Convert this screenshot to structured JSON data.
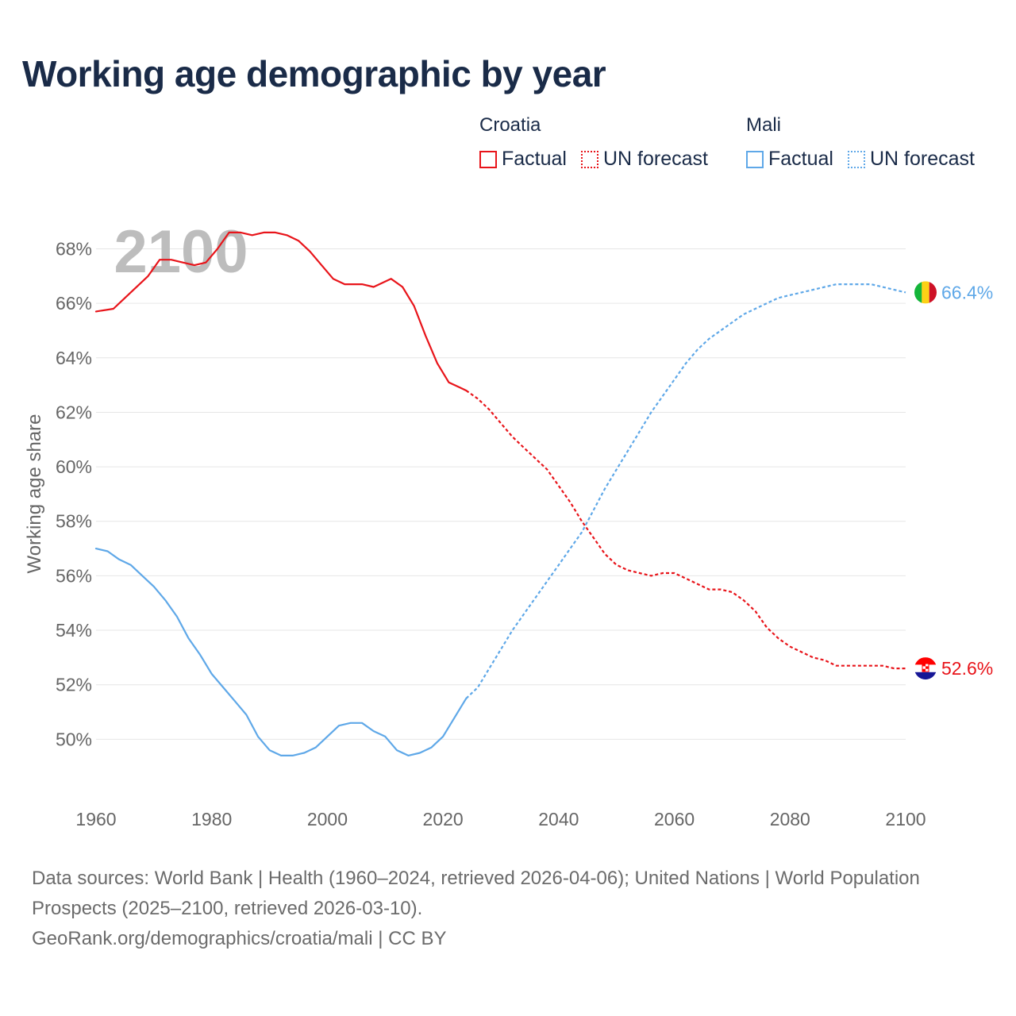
{
  "header": {
    "title": "Working age demographic by year"
  },
  "legend": {
    "groups": [
      {
        "name": "Croatia",
        "factual_label": "Factual",
        "forecast_label": "UN forecast",
        "color": "#e8141a"
      },
      {
        "name": "Mali",
        "factual_label": "Factual",
        "forecast_label": "UN forecast",
        "color": "#5fa8e8"
      }
    ]
  },
  "chart_data": {
    "type": "line",
    "title": "Working age demographic by year",
    "xlabel": "",
    "ylabel": "Working age share",
    "xlim": [
      1960,
      2100
    ],
    "ylim": [
      48,
      69.5
    ],
    "x_ticks": [
      "1960",
      "1980",
      "2000",
      "2020",
      "2040",
      "2060",
      "2080",
      "2100"
    ],
    "y_ticks": [
      "50%",
      "52%",
      "54%",
      "56%",
      "58%",
      "60%",
      "62%",
      "64%",
      "66%",
      "68%"
    ],
    "grid": true,
    "year_watermark": "2100",
    "forecast_start": 2024,
    "series": [
      {
        "name": "Croatia",
        "color": "#e8141a",
        "end_label": "52.6%",
        "flag": "croatia",
        "points": [
          [
            1960,
            65.7
          ],
          [
            1963,
            65.8
          ],
          [
            1966,
            66.4
          ],
          [
            1969,
            67.0
          ],
          [
            1971,
            67.6
          ],
          [
            1973,
            67.6
          ],
          [
            1975,
            67.5
          ],
          [
            1977,
            67.4
          ],
          [
            1979,
            67.5
          ],
          [
            1981,
            68.0
          ],
          [
            1983,
            68.6
          ],
          [
            1985,
            68.6
          ],
          [
            1987,
            68.5
          ],
          [
            1989,
            68.6
          ],
          [
            1991,
            68.6
          ],
          [
            1993,
            68.5
          ],
          [
            1995,
            68.3
          ],
          [
            1997,
            67.9
          ],
          [
            1999,
            67.4
          ],
          [
            2001,
            66.9
          ],
          [
            2003,
            66.7
          ],
          [
            2006,
            66.7
          ],
          [
            2008,
            66.6
          ],
          [
            2011,
            66.9
          ],
          [
            2013,
            66.6
          ],
          [
            2015,
            65.9
          ],
          [
            2017,
            64.8
          ],
          [
            2019,
            63.8
          ],
          [
            2021,
            63.1
          ],
          [
            2023,
            62.9
          ],
          [
            2024,
            62.8
          ],
          [
            2026,
            62.5
          ],
          [
            2028,
            62.1
          ],
          [
            2030,
            61.6
          ],
          [
            2032,
            61.1
          ],
          [
            2034,
            60.7
          ],
          [
            2036,
            60.3
          ],
          [
            2038,
            59.9
          ],
          [
            2040,
            59.3
          ],
          [
            2042,
            58.7
          ],
          [
            2044,
            58.0
          ],
          [
            2046,
            57.4
          ],
          [
            2048,
            56.8
          ],
          [
            2050,
            56.4
          ],
          [
            2052,
            56.2
          ],
          [
            2054,
            56.1
          ],
          [
            2056,
            56.0
          ],
          [
            2058,
            56.1
          ],
          [
            2060,
            56.1
          ],
          [
            2062,
            55.9
          ],
          [
            2064,
            55.7
          ],
          [
            2066,
            55.5
          ],
          [
            2068,
            55.5
          ],
          [
            2070,
            55.4
          ],
          [
            2072,
            55.1
          ],
          [
            2074,
            54.7
          ],
          [
            2076,
            54.1
          ],
          [
            2078,
            53.7
          ],
          [
            2080,
            53.4
          ],
          [
            2082,
            53.2
          ],
          [
            2084,
            53.0
          ],
          [
            2086,
            52.9
          ],
          [
            2088,
            52.7
          ],
          [
            2090,
            52.7
          ],
          [
            2092,
            52.7
          ],
          [
            2094,
            52.7
          ],
          [
            2096,
            52.7
          ],
          [
            2098,
            52.6
          ],
          [
            2100,
            52.6
          ]
        ]
      },
      {
        "name": "Mali",
        "color": "#5fa8e8",
        "end_label": "66.4%",
        "flag": "mali",
        "points": [
          [
            1960,
            57.0
          ],
          [
            1962,
            56.9
          ],
          [
            1964,
            56.6
          ],
          [
            1966,
            56.4
          ],
          [
            1968,
            56.0
          ],
          [
            1970,
            55.6
          ],
          [
            1972,
            55.1
          ],
          [
            1974,
            54.5
          ],
          [
            1976,
            53.7
          ],
          [
            1978,
            53.1
          ],
          [
            1980,
            52.4
          ],
          [
            1982,
            51.9
          ],
          [
            1984,
            51.4
          ],
          [
            1986,
            50.9
          ],
          [
            1988,
            50.1
          ],
          [
            1990,
            49.6
          ],
          [
            1992,
            49.4
          ],
          [
            1994,
            49.4
          ],
          [
            1996,
            49.5
          ],
          [
            1998,
            49.7
          ],
          [
            2000,
            50.1
          ],
          [
            2002,
            50.5
          ],
          [
            2004,
            50.6
          ],
          [
            2006,
            50.6
          ],
          [
            2008,
            50.3
          ],
          [
            2010,
            50.1
          ],
          [
            2012,
            49.6
          ],
          [
            2014,
            49.4
          ],
          [
            2016,
            49.5
          ],
          [
            2018,
            49.7
          ],
          [
            2020,
            50.1
          ],
          [
            2022,
            50.8
          ],
          [
            2024,
            51.5
          ],
          [
            2026,
            51.9
          ],
          [
            2028,
            52.6
          ],
          [
            2030,
            53.3
          ],
          [
            2032,
            54.0
          ],
          [
            2034,
            54.6
          ],
          [
            2036,
            55.2
          ],
          [
            2038,
            55.8
          ],
          [
            2040,
            56.4
          ],
          [
            2042,
            57.0
          ],
          [
            2044,
            57.6
          ],
          [
            2046,
            58.4
          ],
          [
            2048,
            59.2
          ],
          [
            2050,
            59.9
          ],
          [
            2052,
            60.6
          ],
          [
            2054,
            61.3
          ],
          [
            2056,
            62.0
          ],
          [
            2058,
            62.6
          ],
          [
            2060,
            63.2
          ],
          [
            2062,
            63.8
          ],
          [
            2064,
            64.3
          ],
          [
            2066,
            64.7
          ],
          [
            2068,
            65.0
          ],
          [
            2070,
            65.3
          ],
          [
            2072,
            65.6
          ],
          [
            2074,
            65.8
          ],
          [
            2076,
            66.0
          ],
          [
            2078,
            66.2
          ],
          [
            2080,
            66.3
          ],
          [
            2082,
            66.4
          ],
          [
            2084,
            66.5
          ],
          [
            2086,
            66.6
          ],
          [
            2088,
            66.7
          ],
          [
            2090,
            66.7
          ],
          [
            2092,
            66.7
          ],
          [
            2094,
            66.7
          ],
          [
            2096,
            66.6
          ],
          [
            2098,
            66.5
          ],
          [
            2100,
            66.4
          ]
        ]
      }
    ]
  },
  "footer": {
    "sources": "Data sources: World Bank | Health (1960–2024, retrieved 2026-04-06); United Nations | World Population Prospects (2025–2100, retrieved 2026-03-10).",
    "attribution": "GeoRank.org/demographics/croatia/mali | CC BY"
  }
}
